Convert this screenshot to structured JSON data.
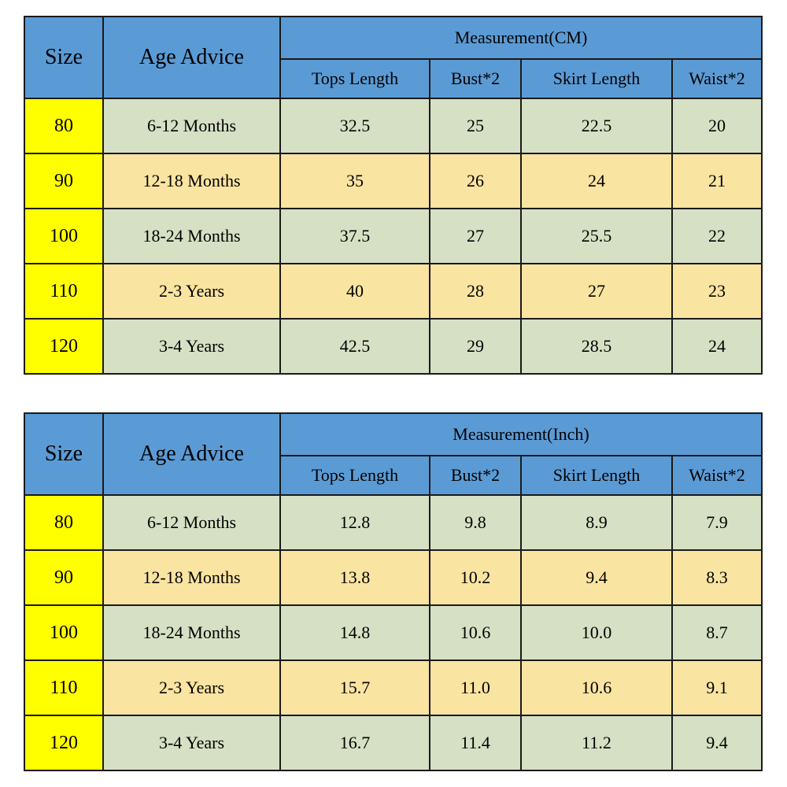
{
  "colors": {
    "background": "#ffffff",
    "text": "#000000",
    "border": "#1a1a1a",
    "header_blue": "#5b9bd5",
    "size_yellow": "#ffff00",
    "row_green": "#d6e0c4",
    "row_cream": "#fae4a1"
  },
  "tables": [
    {
      "header": {
        "size": "Size",
        "age": "Age Advice",
        "measurement": "Measurement(CM)",
        "columns": [
          "Tops Length",
          "Bust*2",
          "Skirt Length",
          "Waist*2"
        ]
      },
      "rows": [
        {
          "size": "80",
          "age": "6-12 Months",
          "values": [
            "32.5",
            "25",
            "22.5",
            "20"
          ]
        },
        {
          "size": "90",
          "age": "12-18 Months",
          "values": [
            "35",
            "26",
            "24",
            "21"
          ]
        },
        {
          "size": "100",
          "age": "18-24 Months",
          "values": [
            "37.5",
            "27",
            "25.5",
            "22"
          ]
        },
        {
          "size": "110",
          "age": "2-3 Years",
          "values": [
            "40",
            "28",
            "27",
            "23"
          ]
        },
        {
          "size": "120",
          "age": "3-4 Years",
          "values": [
            "42.5",
            "29",
            "28.5",
            "24"
          ]
        }
      ]
    },
    {
      "header": {
        "size": "Size",
        "age": "Age Advice",
        "measurement": "Measurement(Inch)",
        "columns": [
          "Tops Length",
          "Bust*2",
          "Skirt Length",
          "Waist*2"
        ]
      },
      "rows": [
        {
          "size": "80",
          "age": "6-12 Months",
          "values": [
            "12.8",
            "9.8",
            "8.9",
            "7.9"
          ]
        },
        {
          "size": "90",
          "age": "12-18 Months",
          "values": [
            "13.8",
            "10.2",
            "9.4",
            "8.3"
          ]
        },
        {
          "size": "100",
          "age": "18-24 Months",
          "values": [
            "14.8",
            "10.6",
            "10.0",
            "8.7"
          ]
        },
        {
          "size": "110",
          "age": "2-3 Years",
          "values": [
            "15.7",
            "11.0",
            "10.6",
            "9.1"
          ]
        },
        {
          "size": "120",
          "age": "3-4 Years",
          "values": [
            "16.7",
            "11.4",
            "11.2",
            "9.4"
          ]
        }
      ]
    }
  ],
  "chart_data": [
    {
      "type": "table",
      "title": "Measurement(CM)",
      "columns": [
        "Size",
        "Age Advice",
        "Tops Length",
        "Bust*2",
        "Skirt Length",
        "Waist*2"
      ],
      "rows": [
        [
          "80",
          "6-12 Months",
          32.5,
          25,
          22.5,
          20
        ],
        [
          "90",
          "12-18 Months",
          35,
          26,
          24,
          21
        ],
        [
          "100",
          "18-24 Months",
          37.5,
          27,
          25.5,
          22
        ],
        [
          "110",
          "2-3 Years",
          40,
          28,
          27,
          23
        ],
        [
          "120",
          "3-4 Years",
          42.5,
          29,
          28.5,
          24
        ]
      ]
    },
    {
      "type": "table",
      "title": "Measurement(Inch)",
      "columns": [
        "Size",
        "Age Advice",
        "Tops Length",
        "Bust*2",
        "Skirt Length",
        "Waist*2"
      ],
      "rows": [
        [
          "80",
          "6-12 Months",
          12.8,
          9.8,
          8.9,
          7.9
        ],
        [
          "90",
          "12-18 Months",
          13.8,
          10.2,
          9.4,
          8.3
        ],
        [
          "100",
          "18-24 Months",
          14.8,
          10.6,
          10.0,
          8.7
        ],
        [
          "110",
          "2-3 Years",
          15.7,
          11.0,
          10.6,
          9.1
        ],
        [
          "120",
          "3-4 Years",
          16.7,
          11.4,
          11.2,
          9.4
        ]
      ]
    }
  ]
}
